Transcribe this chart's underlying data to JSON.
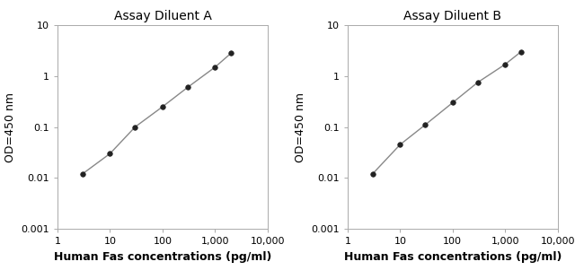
{
  "panel_A": {
    "title": "Assay Diluent A",
    "x": [
      3,
      10,
      30,
      100,
      300,
      1000,
      2000
    ],
    "y": [
      0.012,
      0.03,
      0.1,
      0.25,
      0.6,
      1.5,
      2.8
    ]
  },
  "panel_B": {
    "title": "Assay Diluent B",
    "x": [
      3,
      10,
      30,
      100,
      300,
      1000,
      2000
    ],
    "y": [
      0.012,
      0.045,
      0.11,
      0.3,
      0.75,
      1.7,
      3.0
    ]
  },
  "xlabel": "Human Fas concentrations (pg/ml)",
  "ylabel": "OD=450 nm",
  "xlim": [
    1,
    10000
  ],
  "ylim": [
    0.001,
    10
  ],
  "xticks": [
    1,
    10,
    100,
    1000,
    10000
  ],
  "xtick_labels": [
    "1",
    "10",
    "100",
    "1,000",
    "10,000"
  ],
  "yticks": [
    0.001,
    0.01,
    0.1,
    1,
    10
  ],
  "ytick_labels": [
    "0.001",
    "0.01",
    "0.1",
    "1",
    "10"
  ],
  "line_color": "#888888",
  "marker_color": "#222222",
  "marker_size": 4,
  "line_width": 1.0,
  "title_fontsize": 10,
  "label_fontsize": 9,
  "tick_fontsize": 8
}
